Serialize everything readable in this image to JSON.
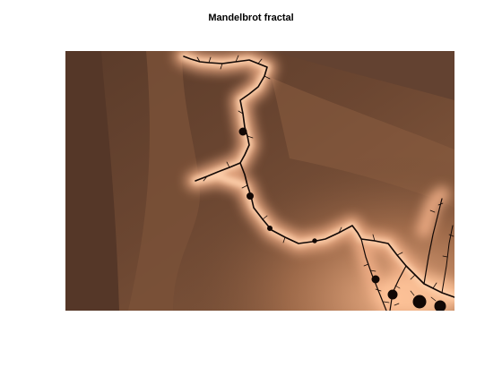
{
  "figure": {
    "title": "Mandelbrot fractal"
  },
  "colors": {
    "background": "#ffffff",
    "colormap": "copper",
    "dark": "#5a3b2a",
    "mid": "#8a5d40",
    "light": "#e0a27a",
    "glow": "#ffcaa0",
    "filament": "#120805"
  }
}
